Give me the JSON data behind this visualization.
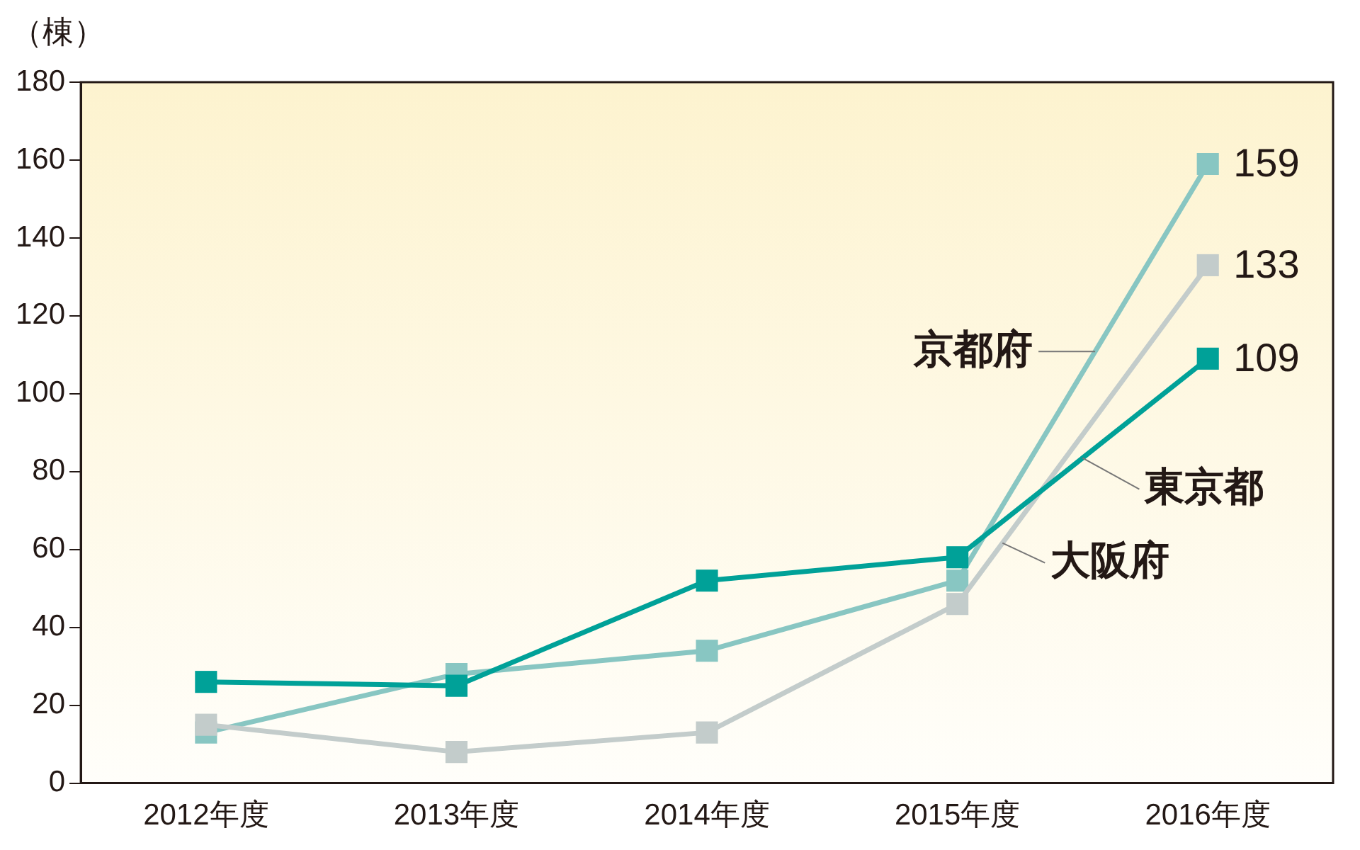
{
  "chart_data": {
    "type": "line",
    "ylabel": "（棟）",
    "categories": [
      "2012年度",
      "2013年度",
      "2014年度",
      "2015年度",
      "2016年度"
    ],
    "series": [
      {
        "name": "京都府",
        "color": "#88c6c2",
        "values": [
          13,
          28,
          34,
          52,
          159
        ],
        "value_labels": [
          null,
          null,
          null,
          null,
          "159"
        ]
      },
      {
        "name": "大阪府",
        "color": "#c3cccb",
        "values": [
          15,
          8,
          13,
          46,
          133
        ],
        "value_labels": [
          null,
          null,
          null,
          null,
          "133"
        ]
      },
      {
        "name": "東京都",
        "color": "#00a198",
        "values": [
          26,
          25,
          52,
          58,
          109
        ],
        "value_labels": [
          null,
          null,
          null,
          null,
          "109"
        ]
      }
    ],
    "ylim": [
      0,
      180
    ],
    "yticks": [
      0,
      20,
      40,
      60,
      80,
      100,
      120,
      140,
      160,
      180
    ],
    "grid": false,
    "legend": false,
    "marker": "square",
    "line_style": "solid"
  }
}
